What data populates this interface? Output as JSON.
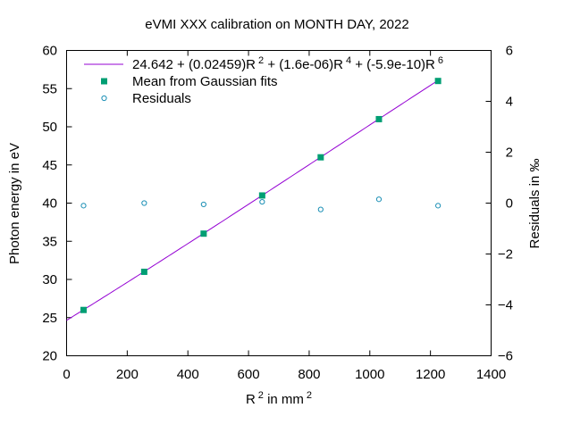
{
  "chart_data": {
    "type": "scatter",
    "title": "eVMI XXX calibration on MONTH DAY, 2022",
    "xlabel": {
      "base": "R",
      "sup": "2",
      "suffix": " in mm",
      "suffix_sup": "2"
    },
    "ylabel": "Photon energy in eV",
    "y2label": "Residuals in ‰",
    "xlim": [
      0,
      1400
    ],
    "ylim": [
      20,
      60
    ],
    "y2lim": [
      -6,
      6
    ],
    "xticks": [
      0,
      200,
      400,
      600,
      800,
      1000,
      1200,
      1400
    ],
    "yticks": [
      20,
      25,
      30,
      35,
      40,
      45,
      50,
      55,
      60
    ],
    "y2ticks": [
      -6,
      -4,
      -2,
      0,
      2,
      4,
      6
    ],
    "grid": false,
    "legend_position": "top-left",
    "fit": {
      "name_parts": [
        {
          "t": "24.642 + (0.02459)R"
        },
        {
          "t": "2",
          "sup": true
        },
        {
          "t": " + (1.6e-06)R"
        },
        {
          "t": "4",
          "sup": true
        },
        {
          "t": " + (-5.9e-10)R"
        },
        {
          "t": "6",
          "sup": true
        }
      ],
      "coefficients": [
        24.642,
        0.02459,
        1.6e-06,
        -5.9e-10
      ],
      "x_range": [
        0,
        1225
      ],
      "color": "#9400d3"
    },
    "series": [
      {
        "name": "Mean from Gaussian fits",
        "marker": "filled-square",
        "color": "#009e73",
        "axis": "y",
        "x": [
          56,
          256,
          452,
          645,
          838,
          1030,
          1225
        ],
        "y": [
          26.0,
          31.0,
          36.0,
          41.0,
          46.0,
          51.0,
          56.0
        ]
      },
      {
        "name": "Residuals",
        "marker": "open-circle",
        "color": "#1a8fb5",
        "axis": "y2",
        "x": [
          56,
          256,
          452,
          645,
          838,
          1030,
          1225
        ],
        "y": [
          -0.1,
          0.0,
          -0.05,
          0.05,
          -0.25,
          0.15,
          -0.1
        ]
      }
    ]
  }
}
